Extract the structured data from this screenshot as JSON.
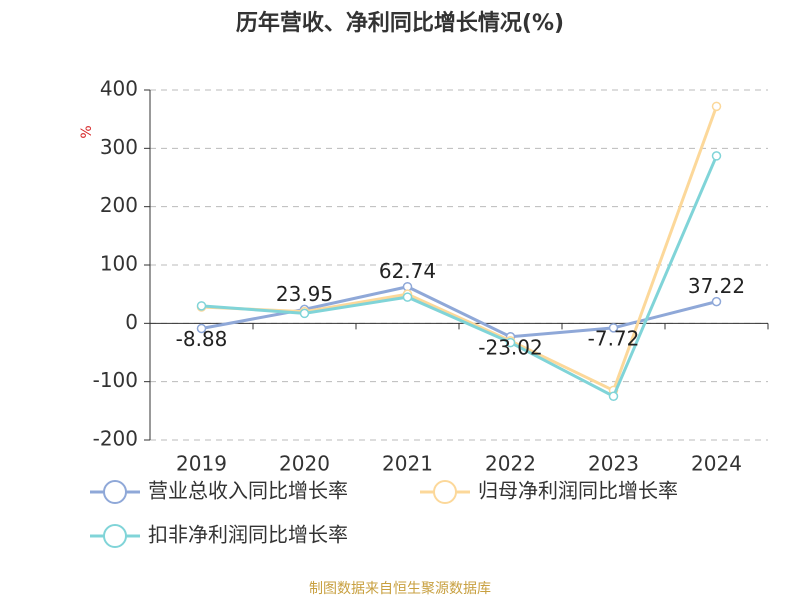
{
  "chart_data": {
    "type": "line",
    "title": "历年营收、净利同比增长情况(%)",
    "y_label": "%",
    "categories": [
      "2019",
      "2020",
      "2021",
      "2022",
      "2023",
      "2024"
    ],
    "series": [
      {
        "name": "营业总收入同比增长率",
        "color": "#8fa8d8",
        "values": [
          -8.88,
          23.95,
          62.74,
          -23.02,
          -7.72,
          37.22
        ],
        "show_labels": true
      },
      {
        "name": "归母净利润同比增长率",
        "color": "#fcd89a",
        "values": [
          28,
          20,
          50,
          -30,
          -115,
          372
        ],
        "show_labels": false
      },
      {
        "name": "扣非净利润同比增长率",
        "color": "#80d4d8",
        "values": [
          30,
          17,
          45,
          -33,
          -125,
          287
        ],
        "show_labels": false
      }
    ],
    "ylim": [
      -200,
      400
    ],
    "yticks": [
      -200,
      -100,
      0,
      100,
      200,
      300,
      400
    ],
    "grid": true,
    "source": "制图数据来自恒生聚源数据库"
  }
}
